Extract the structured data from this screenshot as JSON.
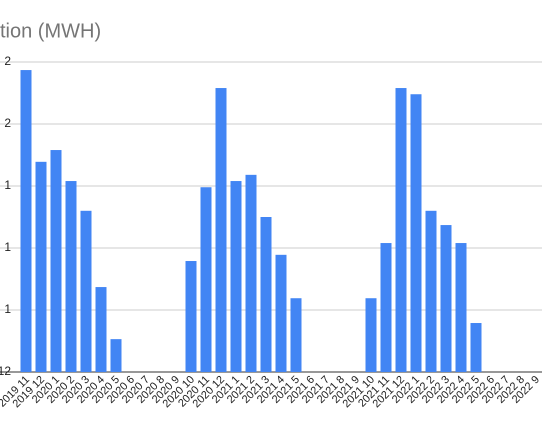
{
  "chart_data": {
    "type": "bar",
    "title": "tion (MWH)",
    "categories": [
      "2019 11",
      "2019 12",
      "2020 1",
      "2020 2",
      "2020 3",
      "2020 4",
      "2020 5",
      "2020 6",
      "2020 7",
      "2020 8",
      "2020 9",
      "2020 10",
      "2020 11",
      "2020 12",
      "2021 1",
      "2021 2",
      "2021 3",
      "2021 4",
      "2021 5",
      "2021 6",
      "2021 7",
      "2021 8",
      "2021 9",
      "2021 10",
      "2021 11",
      "2021 12",
      "2022 1",
      "2022 2",
      "2022 3",
      "2022 4",
      "2022 5",
      "2022 6",
      "2022 7",
      "2022 8",
      "2022 9"
    ],
    "values": [
      4.87,
      3.39,
      3.58,
      3.08,
      2.6,
      1.37,
      0.53,
      0,
      0,
      0,
      0,
      1.79,
      2.98,
      4.58,
      3.08,
      3.18,
      2.5,
      1.89,
      1.19,
      0,
      0,
      0,
      0,
      1.19,
      2.08,
      4.58,
      4.48,
      2.6,
      2.37,
      2.08,
      0.79,
      0,
      0,
      0,
      0
    ],
    "color": "#4285f4",
    "ylim": [
      0,
      5
    ],
    "yticks": [
      {
        "value": 0,
        "label": "12"
      },
      {
        "value": 1,
        "label": "1"
      },
      {
        "value": 2,
        "label": "1"
      },
      {
        "value": 3,
        "label": "1"
      },
      {
        "value": 4,
        "label": "2"
      },
      {
        "value": 5,
        "label": "2"
      }
    ],
    "grid": true
  }
}
